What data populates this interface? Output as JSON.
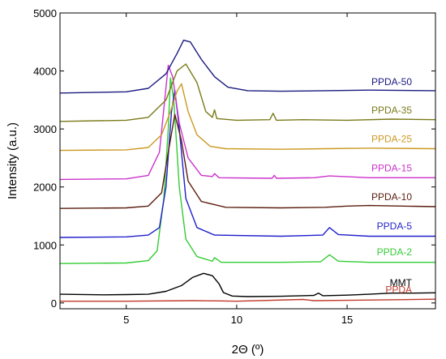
{
  "chart_data": {
    "type": "line",
    "xlabel": "2Θ (º)",
    "ylabel": "Intensity (a.u.)",
    "xlim": [
      2,
      19
    ],
    "ylim": [
      -100,
      5000
    ],
    "x_ticks": [
      5,
      10,
      15
    ],
    "y_ticks": [
      0,
      1000,
      2000,
      3000,
      4000,
      5000
    ],
    "grid": false,
    "legend": "inline-right",
    "series": [
      {
        "name": "PPDA",
        "color": "#c0392b",
        "baseline": 30,
        "points": [
          [
            2,
            30
          ],
          [
            5,
            30
          ],
          [
            8,
            40
          ],
          [
            9.2,
            35
          ],
          [
            10,
            30
          ],
          [
            13,
            60
          ],
          [
            13.5,
            40
          ],
          [
            15,
            45
          ],
          [
            17,
            55
          ],
          [
            19,
            65
          ]
        ]
      },
      {
        "name": "MMT",
        "color": "#000000",
        "baseline": 150,
        "points": [
          [
            2,
            150
          ],
          [
            4,
            140
          ],
          [
            5,
            145
          ],
          [
            6,
            150
          ],
          [
            6.8,
            200
          ],
          [
            7.5,
            300
          ],
          [
            8.0,
            440
          ],
          [
            8.5,
            510
          ],
          [
            8.9,
            470
          ],
          [
            9.2,
            330
          ],
          [
            9.4,
            180
          ],
          [
            9.8,
            120
          ],
          [
            10.5,
            110
          ],
          [
            12,
            115
          ],
          [
            13.5,
            130
          ],
          [
            13.7,
            170
          ],
          [
            13.9,
            125
          ],
          [
            15,
            135
          ],
          [
            16,
            150
          ],
          [
            17,
            170
          ],
          [
            18,
            170
          ],
          [
            19,
            175
          ]
        ]
      },
      {
        "name": "PPDA-2",
        "color": "#33cc33",
        "baseline": 680,
        "points": [
          [
            2,
            680
          ],
          [
            5,
            690
          ],
          [
            6,
            730
          ],
          [
            6.4,
            900
          ],
          [
            6.7,
            1800
          ],
          [
            6.9,
            3000
          ],
          [
            7.0,
            3880
          ],
          [
            7.15,
            3500
          ],
          [
            7.4,
            2000
          ],
          [
            7.7,
            1100
          ],
          [
            8.2,
            800
          ],
          [
            8.9,
            720
          ],
          [
            9.0,
            780
          ],
          [
            9.3,
            700
          ],
          [
            12,
            700
          ],
          [
            13.8,
            710
          ],
          [
            14.2,
            830
          ],
          [
            14.6,
            720
          ],
          [
            16,
            700
          ],
          [
            19,
            700
          ]
        ]
      },
      {
        "name": "PPDA-5",
        "color": "#1f1fcc",
        "baseline": 1130,
        "points": [
          [
            2,
            1130
          ],
          [
            5,
            1140
          ],
          [
            6,
            1170
          ],
          [
            6.5,
            1300
          ],
          [
            6.8,
            2000
          ],
          [
            7.05,
            3300
          ],
          [
            7.2,
            3670
          ],
          [
            7.4,
            3000
          ],
          [
            7.7,
            1800
          ],
          [
            8.2,
            1300
          ],
          [
            9,
            1170
          ],
          [
            12,
            1150
          ],
          [
            13.9,
            1170
          ],
          [
            14.2,
            1300
          ],
          [
            14.6,
            1180
          ],
          [
            16,
            1150
          ],
          [
            19,
            1150
          ]
        ]
      },
      {
        "name": "PPDA-10",
        "color": "#5a1e0e",
        "baseline": 1630,
        "points": [
          [
            2,
            1630
          ],
          [
            5,
            1640
          ],
          [
            6,
            1670
          ],
          [
            6.6,
            1900
          ],
          [
            6.9,
            2600
          ],
          [
            7.2,
            3250
          ],
          [
            7.5,
            2800
          ],
          [
            7.8,
            2100
          ],
          [
            8.4,
            1750
          ],
          [
            9.5,
            1650
          ],
          [
            12,
            1640
          ],
          [
            14,
            1650
          ],
          [
            15,
            1670
          ],
          [
            16,
            1680
          ],
          [
            19,
            1660
          ]
        ]
      },
      {
        "name": "PPDA-15",
        "color": "#cc33cc",
        "baseline": 2130,
        "points": [
          [
            2,
            2130
          ],
          [
            5,
            2140
          ],
          [
            6,
            2200
          ],
          [
            6.5,
            2600
          ],
          [
            6.9,
            4100
          ],
          [
            7.1,
            3900
          ],
          [
            7.4,
            3100
          ],
          [
            7.8,
            2500
          ],
          [
            8.4,
            2200
          ],
          [
            8.9,
            2180
          ],
          [
            9.0,
            2230
          ],
          [
            9.2,
            2160
          ],
          [
            11.6,
            2150
          ],
          [
            11.7,
            2200
          ],
          [
            11.8,
            2150
          ],
          [
            13.5,
            2160
          ],
          [
            14.2,
            2190
          ],
          [
            16,
            2160
          ],
          [
            19,
            2160
          ]
        ]
      },
      {
        "name": "PPDA-25",
        "color": "#cc9922",
        "baseline": 2630,
        "points": [
          [
            2,
            2630
          ],
          [
            5,
            2640
          ],
          [
            6,
            2680
          ],
          [
            6.6,
            2900
          ],
          [
            7.0,
            3300
          ],
          [
            7.3,
            3650
          ],
          [
            7.5,
            3780
          ],
          [
            7.8,
            3300
          ],
          [
            8.2,
            2900
          ],
          [
            8.8,
            2700
          ],
          [
            9.5,
            2660
          ],
          [
            12,
            2650
          ],
          [
            14,
            2660
          ],
          [
            16,
            2670
          ],
          [
            19,
            2660
          ]
        ]
      },
      {
        "name": "PPDA-35",
        "color": "#7a7a1a",
        "baseline": 3130,
        "points": [
          [
            2,
            3130
          ],
          [
            5,
            3150
          ],
          [
            6,
            3200
          ],
          [
            6.8,
            3500
          ],
          [
            7.3,
            4000
          ],
          [
            7.7,
            4120
          ],
          [
            8.2,
            3800
          ],
          [
            8.6,
            3300
          ],
          [
            8.9,
            3200
          ],
          [
            9.0,
            3330
          ],
          [
            9.1,
            3180
          ],
          [
            10,
            3150
          ],
          [
            11.5,
            3160
          ],
          [
            11.65,
            3270
          ],
          [
            11.8,
            3150
          ],
          [
            13,
            3160
          ],
          [
            15,
            3150
          ],
          [
            17,
            3170
          ],
          [
            19,
            3160
          ]
        ]
      },
      {
        "name": "PPDA-50",
        "color": "#1a1a80",
        "baseline": 3620,
        "points": [
          [
            2,
            3620
          ],
          [
            5,
            3640
          ],
          [
            6,
            3700
          ],
          [
            6.8,
            3950
          ],
          [
            7.3,
            4300
          ],
          [
            7.6,
            4530
          ],
          [
            7.9,
            4500
          ],
          [
            8.4,
            4200
          ],
          [
            9,
            3900
          ],
          [
            9.6,
            3720
          ],
          [
            10.5,
            3660
          ],
          [
            12,
            3650
          ],
          [
            14,
            3660
          ],
          [
            16,
            3670
          ],
          [
            19,
            3660
          ]
        ]
      }
    ]
  }
}
